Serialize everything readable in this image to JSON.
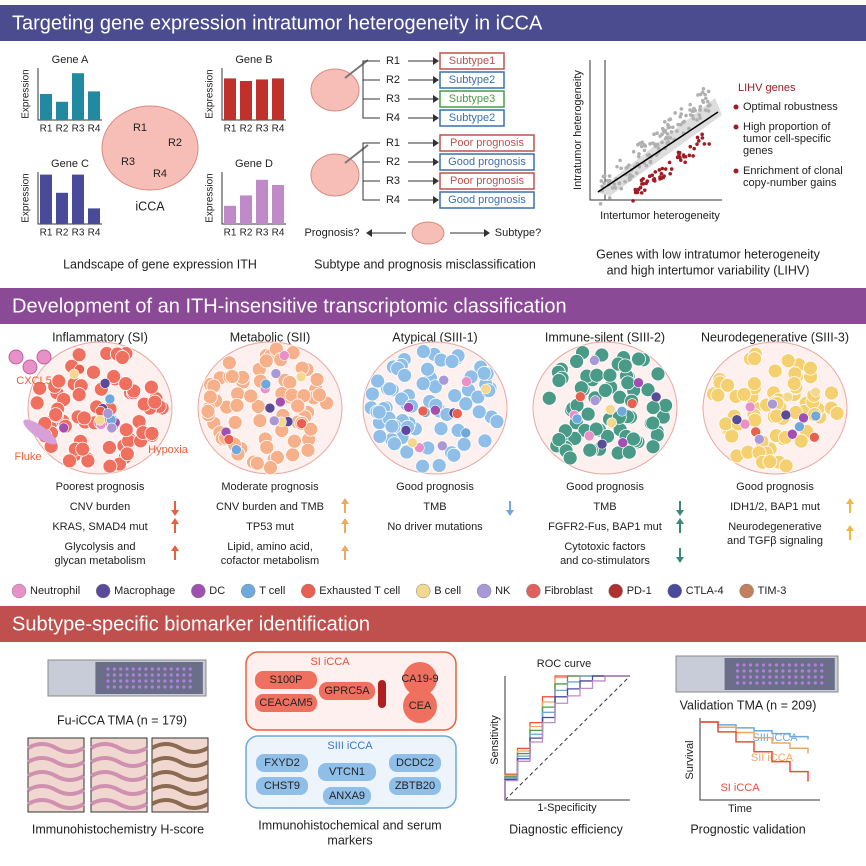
{
  "header1": {
    "title": "Targeting gene expression intratumor heterogeneity in iCCA"
  },
  "ith": {
    "axis_label": "Expression",
    "categories": [
      "R1",
      "R2",
      "R3",
      "R4"
    ],
    "ylim": [
      0,
      1
    ],
    "genes": [
      {
        "name": "Gene A",
        "color": "#1f8aa0",
        "values": [
          0.5,
          0.35,
          0.9,
          0.55
        ]
      },
      {
        "name": "Gene B",
        "color": "#c0312b",
        "values": [
          0.8,
          0.75,
          0.78,
          0.8
        ]
      },
      {
        "name": "Gene C",
        "color": "#4a4a9a",
        "values": [
          0.95,
          0.6,
          0.95,
          0.3
        ]
      },
      {
        "name": "Gene D",
        "color": "#c08ac8",
        "values": [
          0.35,
          0.55,
          0.85,
          0.75
        ]
      }
    ],
    "tumor_regions": [
      "R1",
      "R2",
      "R3",
      "R4"
    ],
    "tumor_label": "iCCA",
    "caption": "Landscape of gene expression ITH"
  },
  "misclass": {
    "regions": [
      "R1",
      "R2",
      "R3",
      "R4"
    ],
    "subtypes": [
      {
        "label": "Subtype1",
        "color": "#c0504d"
      },
      {
        "label": "Subtype2",
        "color": "#3a6fb0"
      },
      {
        "label": "Subtype3",
        "color": "#4a9a4a"
      },
      {
        "label": "Subtype2",
        "color": "#3a6fb0"
      }
    ],
    "prognosis": [
      {
        "label": "Poor prognosis",
        "color": "#c0504d"
      },
      {
        "label": "Good prognosis",
        "color": "#3a6fb0"
      },
      {
        "label": "Poor prognosis",
        "color": "#c0504d"
      },
      {
        "label": "Good prognosis",
        "color": "#3a6fb0"
      }
    ],
    "left_question": "Prognosis?",
    "right_question": "Subtype?",
    "caption": "Subtype and prognosis misclassification"
  },
  "lihv": {
    "y_label": "Intratumor heterogeneity",
    "x_label": "Intertumor heterogeneity",
    "legend_title": "LIHV genes",
    "bullets": [
      [
        "Optimal robustness"
      ],
      [
        "High proportion of",
        "tumor cell-specific",
        "genes"
      ],
      [
        "Enrichment of clonal",
        "copy-number gains"
      ]
    ],
    "caption": [
      "Genes with low intratumor heterogeneity",
      "and high intertumor variability (LIHV)"
    ]
  },
  "header2": {
    "title": "Development of an ITH-insensitive transcriptomic classification"
  },
  "classes": [
    {
      "name": "Inflammatory (SI)",
      "color": "#f07060",
      "arrow_color": "#e8603c",
      "prognosis": "Poorest prognosis",
      "features": [
        {
          "lines": [
            "CNV burden"
          ],
          "direction": "down"
        },
        {
          "lines": [
            "KRAS, SMAD4 mut"
          ],
          "direction": "up"
        },
        {
          "lines": [
            "Glycolysis and",
            "glycan metabolism"
          ],
          "direction": "up"
        }
      ]
    },
    {
      "name": "Metabolic (SII)",
      "color": "#f6b08a",
      "arrow_color": "#f0a860",
      "prognosis": "Moderate prognosis",
      "features": [
        {
          "lines": [
            "CNV burden and TMB"
          ],
          "direction": "up"
        },
        {
          "lines": [
            "TP53 mut"
          ],
          "direction": "up"
        },
        {
          "lines": [
            "Lipid, amino acid,",
            "cofactor metabolism"
          ],
          "direction": "up"
        }
      ]
    },
    {
      "name": "Atypical (SIII-1)",
      "color": "#8fbfe8",
      "arrow_color": "#6fa8dc",
      "prognosis": "Good prognosis",
      "features": [
        {
          "lines": [
            "TMB"
          ],
          "direction": "down"
        },
        {
          "lines": [
            "No driver mutations"
          ],
          "direction": null
        }
      ]
    },
    {
      "name": "Immune-silent (SIII-2)",
      "color": "#4a9a88",
      "arrow_color": "#3a8a7a",
      "prognosis": "Good prognosis",
      "features": [
        {
          "lines": [
            "TMB"
          ],
          "direction": "down"
        },
        {
          "lines": [
            "FGFR2-Fus, BAP1 mut"
          ],
          "direction": "up"
        },
        {
          "lines": [
            "Cytotoxic factors",
            "and co-stimulators"
          ],
          "direction": "down"
        }
      ]
    },
    {
      "name": "Neurodegenerative (SIII-3)",
      "color": "#f5d070",
      "arrow_color": "#f0b840",
      "prognosis": "Good prognosis",
      "features": [
        {
          "lines": [
            "IDH1/2, BAP1 mut"
          ],
          "direction": "up"
        },
        {
          "lines": [
            "Neurodegenerative",
            "and TGFβ signaling"
          ],
          "direction": "up"
        }
      ]
    }
  ],
  "annotations": {
    "cxcl5": "CXCL5",
    "fluke": "Fluke",
    "hypoxia": "Hypoxia"
  },
  "cell_legend": [
    {
      "name": "Neutrophil",
      "color": "#e890c8"
    },
    {
      "name": "Macrophage",
      "color": "#5a4a9a"
    },
    {
      "name": "DC",
      "color": "#a050b0"
    },
    {
      "name": "T cell",
      "color": "#6fa8dc"
    },
    {
      "name": "Exhausted T cell",
      "color": "#e86050"
    },
    {
      "name": "B cell",
      "color": "#f5d890"
    },
    {
      "name": "NK",
      "color": "#a898d8"
    },
    {
      "name": "Fibroblast",
      "color": "#e06060"
    },
    {
      "name": "PD-1",
      "color": "#b03030"
    },
    {
      "name": "CTLA-4",
      "color": "#4a4a9a"
    },
    {
      "name": "TIM-3",
      "color": "#c08060"
    }
  ],
  "header3": {
    "title": "Subtype-specific biomarker identification"
  },
  "tma": {
    "label": "Fu-iCCA TMA (n = 179)",
    "caption": "Immunohistochemistry H-score"
  },
  "markers": {
    "si": {
      "title": "SI iCCA",
      "tissue": [
        "S100P",
        "CEACAM5"
      ],
      "main": "GPRC5A",
      "serum": [
        "CA19-9",
        "CEA"
      ]
    },
    "siii": {
      "title": "SIII iCCA",
      "left": [
        "FXYD2",
        "CHST9"
      ],
      "main": "VTCN1",
      "bottom": "ANXA9",
      "right": [
        "DCDC2",
        "ZBTB20"
      ]
    },
    "caption": [
      "Immunohistochemical and serum",
      "markers"
    ]
  },
  "roc": {
    "title": "ROC curve",
    "y_label": "Sensitivity",
    "x_label": "1-Specificity",
    "caption": "Diagnostic efficiency"
  },
  "validation": {
    "label": "Validation TMA (n = 209)",
    "y_label": "Survival",
    "x_label": "Time",
    "curves": [
      {
        "name": "SIII iCCA",
        "color": "#6fa8dc"
      },
      {
        "name": "SII iCCA",
        "color": "#f0a860"
      },
      {
        "name": "SI iCCA",
        "color": "#e8503c"
      }
    ],
    "caption": "Prognostic validation"
  }
}
